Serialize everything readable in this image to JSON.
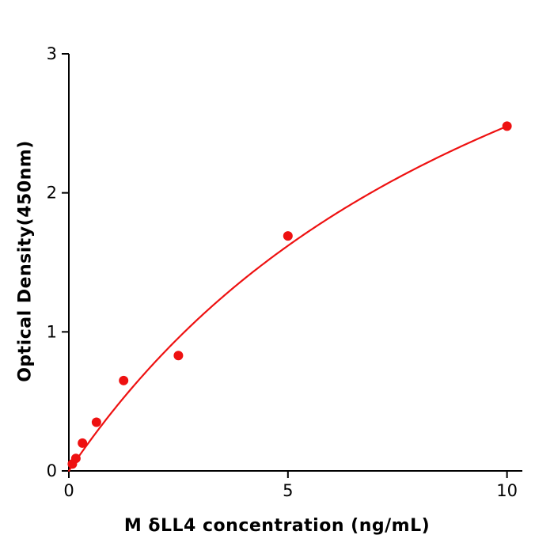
{
  "chart_data": {
    "type": "scatter",
    "title": "",
    "xlabel": "M δLL4 concentration (ng/mL)",
    "ylabel": "Optical Density(450nm)",
    "xlim": [
      0,
      10.35
    ],
    "ylim": [
      0,
      3
    ],
    "xticks": [
      0,
      5,
      10
    ],
    "yticks": [
      0,
      1,
      2,
      3
    ],
    "grid": false,
    "legend": "none",
    "point_color": "#ee1111",
    "line_color": "#ee1111",
    "axis_color": "#000000",
    "points": [
      {
        "x": 0.08,
        "y": 0.05
      },
      {
        "x": 0.16,
        "y": 0.09
      },
      {
        "x": 0.31,
        "y": 0.2
      },
      {
        "x": 0.63,
        "y": 0.35
      },
      {
        "x": 1.25,
        "y": 0.65
      },
      {
        "x": 2.5,
        "y": 0.83
      },
      {
        "x": 5,
        "y": 1.69
      },
      {
        "x": 10,
        "y": 2.48
      }
    ],
    "fit_curve": {
      "type": "michaelis_menten",
      "vmax": 5.28,
      "km": 11.3,
      "x_start": 0,
      "x_end": 10
    }
  }
}
